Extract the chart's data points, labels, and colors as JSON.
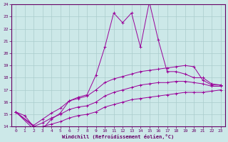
{
  "xlabel": "Windchill (Refroidissement éolien,°C)",
  "xlim": [
    -0.5,
    23.5
  ],
  "ylim": [
    14,
    24
  ],
  "xticks": [
    0,
    1,
    2,
    3,
    4,
    5,
    6,
    7,
    8,
    9,
    10,
    11,
    12,
    13,
    14,
    15,
    16,
    17,
    18,
    19,
    20,
    21,
    22,
    23
  ],
  "yticks": [
    14,
    15,
    16,
    17,
    18,
    19,
    20,
    21,
    22,
    23,
    24
  ],
  "bg_color": "#cce8e8",
  "grid_color": "#aacccc",
  "line_color": "#990099",
  "line1_x": [
    0,
    1,
    2,
    3,
    4,
    5,
    6,
    7,
    8,
    9,
    10,
    11,
    12,
    13,
    14,
    15,
    16,
    17,
    18,
    19,
    20,
    21,
    22,
    23
  ],
  "line1_y": [
    15.2,
    14.9,
    14.0,
    13.8,
    14.6,
    15.1,
    16.1,
    16.4,
    16.6,
    18.2,
    20.5,
    23.3,
    22.5,
    23.3,
    20.5,
    24.2,
    21.1,
    18.5,
    18.5,
    18.3,
    18.0,
    18.0,
    17.5,
    17.4
  ],
  "line2_x": [
    0,
    2,
    3,
    4,
    5,
    6,
    7,
    8,
    9,
    10,
    11,
    12,
    13,
    14,
    15,
    16,
    17,
    18,
    19,
    20,
    21,
    22,
    23
  ],
  "line2_y": [
    15.2,
    14.1,
    14.6,
    15.1,
    15.5,
    16.1,
    16.3,
    16.5,
    17.0,
    17.6,
    17.9,
    18.1,
    18.3,
    18.5,
    18.6,
    18.7,
    18.8,
    18.9,
    19.0,
    18.9,
    17.8,
    17.4,
    17.4
  ],
  "line3_x": [
    0,
    2,
    3,
    4,
    5,
    6,
    7,
    8,
    9,
    10,
    11,
    12,
    13,
    14,
    15,
    16,
    17,
    18,
    19,
    20,
    21,
    22,
    23
  ],
  "line3_y": [
    15.2,
    14.0,
    14.3,
    14.7,
    15.0,
    15.4,
    15.6,
    15.7,
    16.0,
    16.5,
    16.8,
    17.0,
    17.2,
    17.4,
    17.5,
    17.6,
    17.6,
    17.7,
    17.7,
    17.6,
    17.5,
    17.3,
    17.3
  ],
  "line4_x": [
    0,
    2,
    3,
    4,
    5,
    6,
    7,
    8,
    9,
    10,
    11,
    12,
    13,
    14,
    15,
    16,
    17,
    18,
    19,
    20,
    21,
    22,
    23
  ],
  "line4_y": [
    15.2,
    13.8,
    14.0,
    14.2,
    14.4,
    14.7,
    14.9,
    15.0,
    15.2,
    15.6,
    15.8,
    16.0,
    16.2,
    16.3,
    16.4,
    16.5,
    16.6,
    16.7,
    16.8,
    16.8,
    16.8,
    16.9,
    17.0
  ]
}
